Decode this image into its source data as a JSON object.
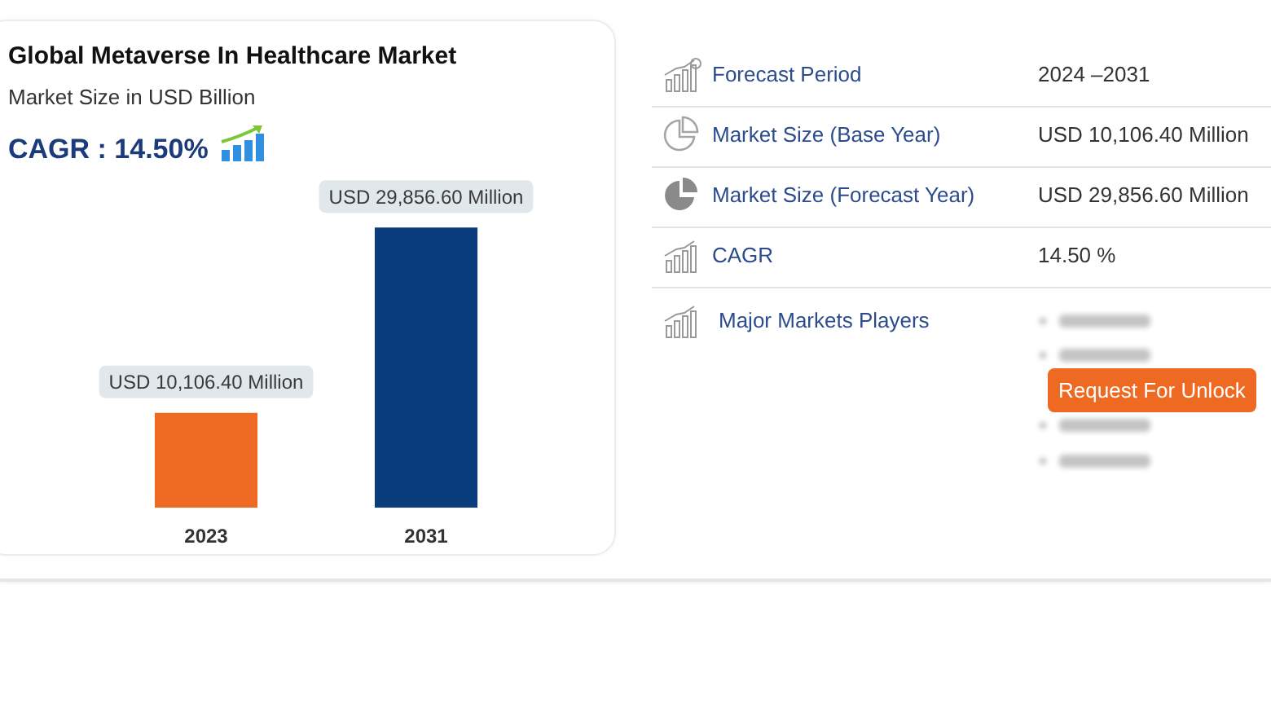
{
  "chart_data": [
    {
      "type": "bar",
      "title": "Global Metaverse In Healthcare Market",
      "subtitle": "Market Size in USD Billion",
      "annotations": [
        "CAGR : 14.50%"
      ],
      "categories": [
        "2023",
        "2031"
      ],
      "values": [
        10106.4,
        29856.6
      ],
      "colors": [
        "#ee6a22",
        "#0a3d7c"
      ],
      "value_labels": [
        "USD 10,106.40 Million",
        "USD 29,856.60 Million"
      ],
      "tick_labels": "x"
    },
    {
      "type": "other",
      "annotations": [
        "Forecast Period",
        "2024 –2031",
        "Market Size (Base Year)",
        "USD 10,106.40 Million",
        "Market Size (Forecast Year)",
        "USD 29,856.60 Million",
        "CAGR",
        "14.50 %",
        "Major Markets Players",
        "Request For Unlock"
      ]
    }
  ]
}
